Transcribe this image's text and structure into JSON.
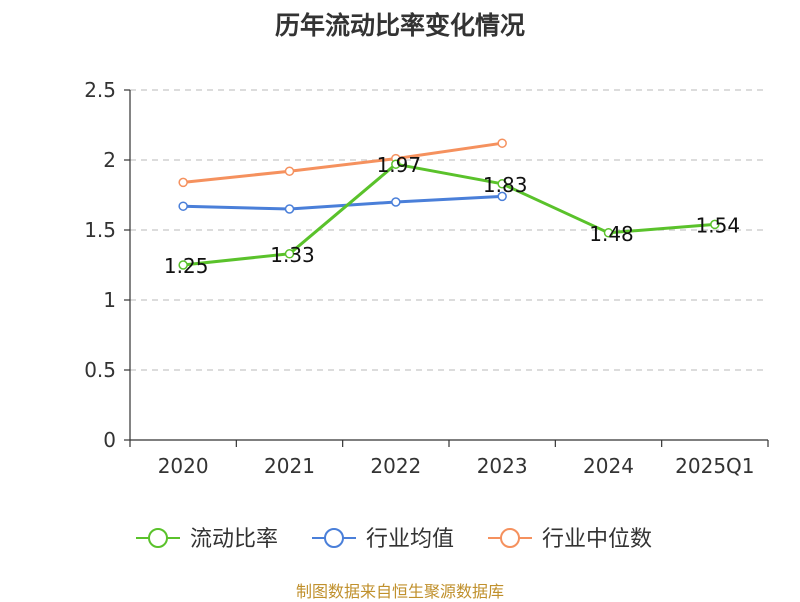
{
  "colors": {
    "current_ratio": "#5ac22b",
    "industry_average": "#4a7fd9",
    "industry_median": "#f5915e",
    "source_text": "#c0902c"
  },
  "chart_data": {
    "type": "line",
    "title": "历年流动比率变化情况",
    "categories": [
      "2020",
      "2021",
      "2022",
      "2023",
      "2024",
      "2025Q1"
    ],
    "ylim": [
      0,
      2.5
    ],
    "yticks": [
      "0",
      "0.5",
      "1",
      "1.5",
      "2",
      "2.5"
    ],
    "grid": true,
    "legend_position": "bottom",
    "series": [
      {
        "name": "流动比率",
        "values": [
          1.25,
          1.33,
          1.97,
          1.83,
          1.48,
          1.54
        ],
        "labels": [
          "1.25",
          "1.33",
          "1.97",
          "1.83",
          "1.48",
          "1.54"
        ],
        "show_labels": true
      },
      {
        "name": "行业均值",
        "values": [
          1.67,
          1.65,
          1.7,
          1.74,
          null,
          null
        ],
        "show_labels": false
      },
      {
        "name": "行业中位数",
        "values": [
          1.84,
          1.92,
          2.01,
          2.12,
          null,
          null
        ],
        "show_labels": false
      }
    ]
  },
  "source_note": "制图数据来自恒生聚源数据库"
}
